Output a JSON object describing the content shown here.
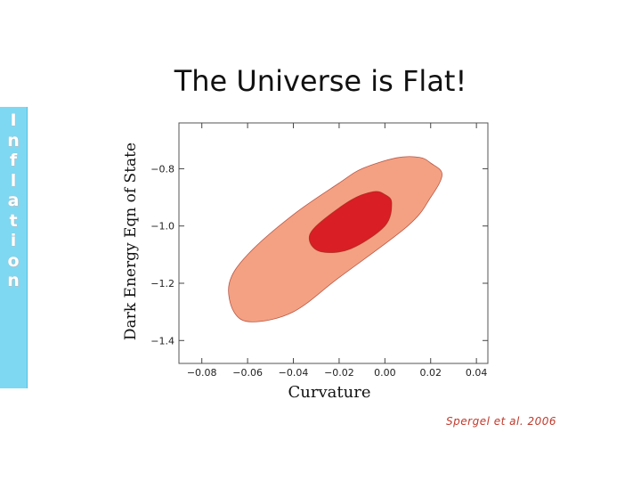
{
  "sidebar": {
    "letters": [
      "I",
      "n",
      "f",
      "l",
      "a",
      "t",
      "i",
      "o",
      "n"
    ]
  },
  "slide": {
    "credit": "Spergel et al. 2006"
  },
  "colors": {
    "sidebar": "#7fd8f2",
    "outer_contour": "#f4a183",
    "inner_contour": "#d91e25",
    "contour_edge": "#9c2a1a"
  },
  "chart_data": {
    "type": "scatter",
    "title": "The Universe is Flat!",
    "xlabel": "Curvature",
    "ylabel": "Dark Energy Eqn of State",
    "xlim": [
      -0.09,
      0.045
    ],
    "ylim": [
      -1.48,
      -0.64
    ],
    "xticks": [
      -0.08,
      -0.06,
      -0.04,
      -0.02,
      0.0,
      0.02,
      0.04
    ],
    "xtick_labels": [
      "−0.08",
      "−0.06",
      "−0.04",
      "−0.02",
      "0.00",
      "0.02",
      "0.04"
    ],
    "yticks": [
      -0.8,
      -1.0,
      -1.2,
      -1.4
    ],
    "ytick_labels": [
      "−0.8",
      "−1.0",
      "−1.2",
      "−1.4"
    ],
    "grid": false,
    "series": [
      {
        "region": "outer",
        "points": [
          [
            0.02,
            -0.78
          ],
          [
            0.015,
            -0.76
          ],
          [
            0.005,
            -0.762
          ],
          [
            -0.01,
            -0.8
          ],
          [
            -0.02,
            -0.85
          ],
          [
            -0.04,
            -0.96
          ],
          [
            -0.06,
            -1.1
          ],
          [
            -0.068,
            -1.2
          ],
          [
            -0.066,
            -1.3
          ],
          [
            -0.058,
            -1.335
          ],
          [
            -0.04,
            -1.3
          ],
          [
            -0.02,
            -1.18
          ],
          [
            0.01,
            -1.0
          ],
          [
            0.02,
            -0.9
          ],
          [
            0.025,
            -0.82
          ]
        ]
      },
      {
        "region": "inner",
        "points": [
          [
            0.0,
            -0.89
          ],
          [
            -0.005,
            -0.88
          ],
          [
            -0.015,
            -0.91
          ],
          [
            -0.03,
            -1.0
          ],
          [
            -0.033,
            -1.05
          ],
          [
            -0.028,
            -1.09
          ],
          [
            -0.015,
            -1.08
          ],
          [
            0.0,
            -1.0
          ],
          [
            0.003,
            -0.92
          ]
        ]
      }
    ]
  }
}
